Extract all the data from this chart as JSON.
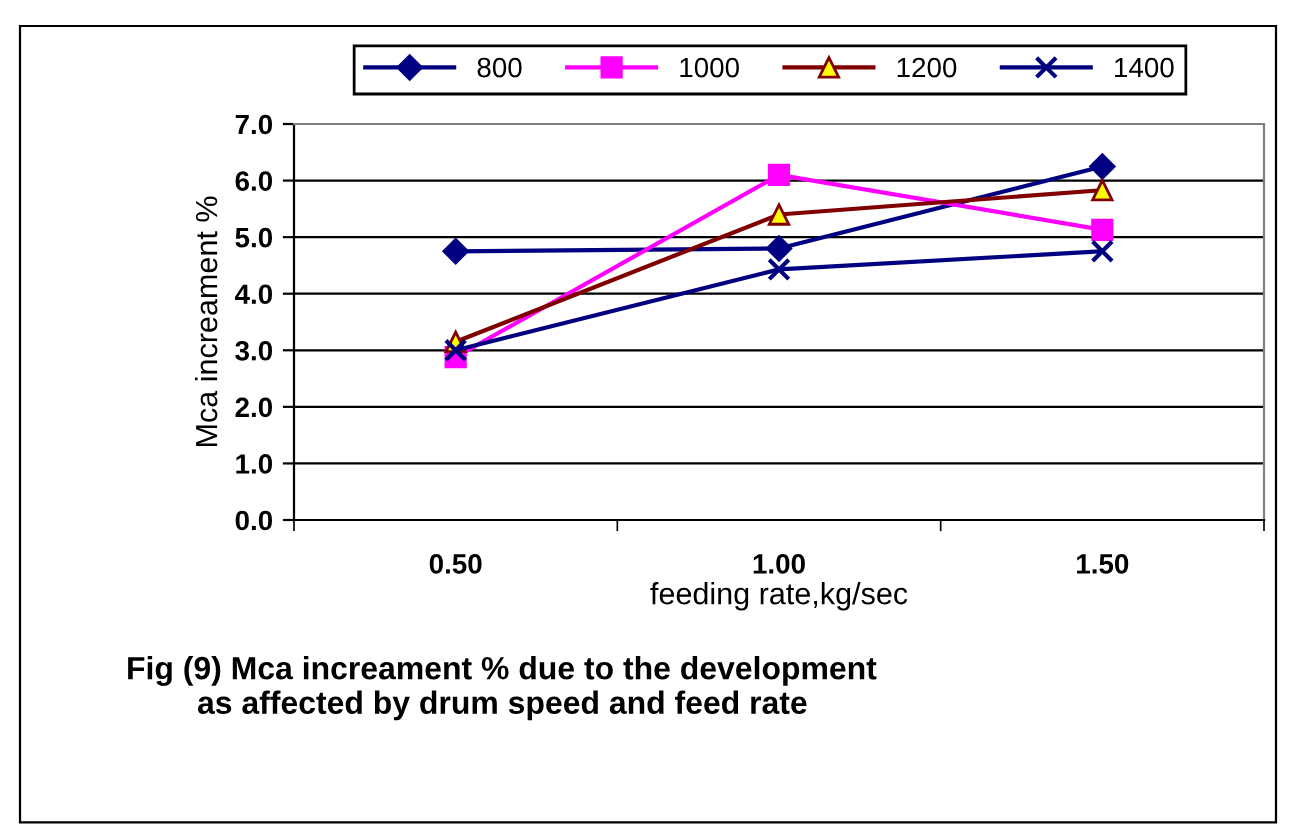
{
  "chart_data": {
    "type": "line",
    "xlabel": "feeding rate,kg/sec",
    "ylabel": "Mca increament %",
    "categories": [
      "0.50",
      "1.00",
      "1.50"
    ],
    "series": [
      {
        "name": "800",
        "color": "#000080",
        "marker": "diamond",
        "values": [
          4.75,
          4.8,
          6.25
        ]
      },
      {
        "name": "1000",
        "color": "#ff00ff",
        "marker": "square",
        "values": [
          2.88,
          6.1,
          5.13
        ]
      },
      {
        "name": "1200",
        "color": "#800000",
        "marker": "triangle",
        "values": [
          3.15,
          5.4,
          5.83
        ]
      },
      {
        "name": "1400",
        "color": "#000080",
        "marker": "cross",
        "values": [
          3.0,
          4.43,
          4.75
        ]
      }
    ],
    "ylim": [
      0,
      7
    ],
    "yticks": [
      {
        "value": 0,
        "label": "0.0"
      },
      {
        "value": 1,
        "label": "1.0"
      },
      {
        "value": 2,
        "label": "2.0"
      },
      {
        "value": 3,
        "label": "3.0"
      },
      {
        "value": 4,
        "label": "4.0"
      },
      {
        "value": 5,
        "label": "5.0"
      },
      {
        "value": 6,
        "label": "6.0"
      },
      {
        "value": 7,
        "label": "7.0"
      }
    ],
    "grid": "y",
    "legend": "top",
    "line_style": "solid",
    "annotations": [
      "Fig (9) Mca increament % due to the development\n        as affected by drum speed and feed rate"
    ]
  }
}
